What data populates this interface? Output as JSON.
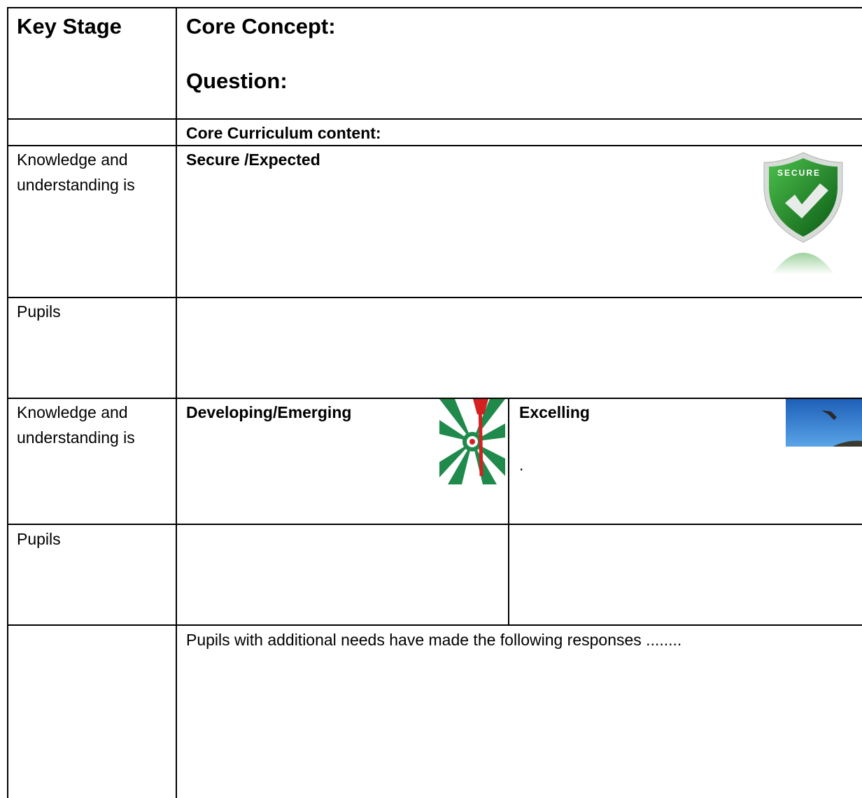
{
  "table": {
    "header": {
      "key_stage": "Key Stage",
      "core_concept": "Core Concept:",
      "question": "Question:"
    },
    "curriculum_row": "Core Curriculum content:",
    "secure": {
      "label": "Knowledge and understanding is",
      "heading": "Secure /Expected",
      "badge": "SECURE"
    },
    "pupils_1": "Pupils",
    "levels": {
      "label": "Knowledge and understanding is",
      "developing": "Developing/Emerging",
      "excelling": "Excelling",
      "excelling_note": "."
    },
    "pupils_2": "Pupils",
    "additional_needs": "Pupils with additional needs have made the following responses ........"
  }
}
